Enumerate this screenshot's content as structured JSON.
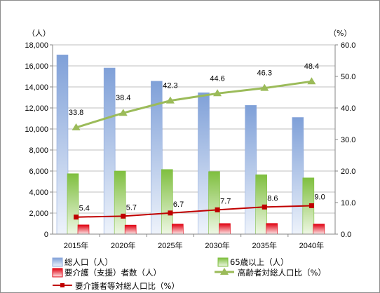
{
  "chart_data": {
    "type": "bar",
    "categories": [
      "2015年",
      "2020年",
      "2025年",
      "2030年",
      "2035年",
      "2040年"
    ],
    "y_left": {
      "unit": "（人）",
      "ylim": [
        0,
        18000
      ],
      "ticks": [
        "0",
        "2,000",
        "4,000",
        "6,000",
        "8,000",
        "10,000",
        "12,000",
        "14,000",
        "16,000",
        "18,000"
      ]
    },
    "y_right": {
      "unit": "（%）",
      "ylim": [
        0,
        60
      ],
      "ticks": [
        "0.0",
        "10.0",
        "20.0",
        "30.0",
        "40.0",
        "50.0",
        "60.0"
      ]
    },
    "grid": true,
    "legend_position": "bottom",
    "series": [
      {
        "name": "総人口（人）",
        "kind": "bar",
        "axis": "left",
        "color": "#8faadc",
        "values": [
          17050,
          15800,
          14550,
          13450,
          12250,
          11100
        ]
      },
      {
        "name": "65歳以上（人）",
        "kind": "bar",
        "axis": "left",
        "color": "#8cc63f",
        "values": [
          5750,
          6000,
          6150,
          5950,
          5650,
          5350
        ]
      },
      {
        "name": "要介護（支援）者数（人）",
        "kind": "bar",
        "axis": "left",
        "color": "#e8000b",
        "values": [
          880,
          860,
          960,
          1010,
          1020,
          960
        ]
      },
      {
        "name": "高齢者対総人口比（%）",
        "kind": "line",
        "axis": "right",
        "color": "#9bbb59",
        "marker": "triangle",
        "values": [
          33.8,
          38.4,
          42.3,
          44.6,
          46.3,
          48.4
        ],
        "labels": [
          "33.8",
          "38.4",
          "42.3",
          "44.6",
          "46.3",
          "48.4"
        ]
      },
      {
        "name": "要介護者等対総人口比（%）",
        "kind": "line",
        "axis": "right",
        "color": "#c00000",
        "marker": "square",
        "values": [
          5.4,
          5.7,
          6.7,
          7.7,
          8.6,
          9.0
        ],
        "labels": [
          "5.4",
          "5.7",
          "6.7",
          "7.7",
          "8.6",
          "9.0"
        ]
      }
    ]
  }
}
